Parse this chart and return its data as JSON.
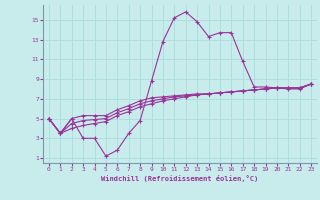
{
  "xlabel": "Windchill (Refroidissement éolien,°C)",
  "bg_color": "#c8ecec",
  "line_color": "#993399",
  "grid_color": "#aadddd",
  "xlim": [
    -0.5,
    23.5
  ],
  "ylim": [
    0.5,
    16.5
  ],
  "xticks": [
    0,
    1,
    2,
    3,
    4,
    5,
    6,
    7,
    8,
    9,
    10,
    11,
    12,
    13,
    14,
    15,
    16,
    17,
    18,
    19,
    20,
    21,
    22,
    23
  ],
  "yticks": [
    1,
    3,
    5,
    7,
    9,
    11,
    13,
    15
  ],
  "line1_x": [
    0,
    1,
    2,
    3,
    4,
    5,
    6,
    7,
    8,
    9,
    10,
    11,
    12,
    13,
    14,
    15,
    16,
    17,
    18,
    19,
    20,
    21,
    22,
    23
  ],
  "line1_y": [
    5,
    3.5,
    5.0,
    3.0,
    3.0,
    1.2,
    1.8,
    3.5,
    4.8,
    8.8,
    12.8,
    15.2,
    15.8,
    14.8,
    13.3,
    13.7,
    13.7,
    10.8,
    8.2,
    8.2,
    8.1,
    8.0,
    8.0,
    8.5
  ],
  "line2_x": [
    0,
    1,
    2,
    3,
    4,
    5,
    6,
    7,
    8,
    9,
    10,
    11,
    12,
    13,
    14,
    15,
    16,
    17,
    18,
    19,
    20,
    21,
    22,
    23
  ],
  "line2_y": [
    5,
    3.5,
    5.0,
    5.3,
    5.3,
    5.3,
    5.9,
    6.3,
    6.8,
    7.1,
    7.2,
    7.3,
    7.4,
    7.5,
    7.5,
    7.6,
    7.7,
    7.8,
    7.9,
    8.0,
    8.1,
    8.1,
    8.1,
    8.5
  ],
  "line3_x": [
    0,
    1,
    2,
    3,
    4,
    5,
    6,
    7,
    8,
    9,
    10,
    11,
    12,
    13,
    14,
    15,
    16,
    17,
    18,
    19,
    20,
    21,
    22,
    23
  ],
  "line3_y": [
    5,
    3.5,
    4.5,
    4.8,
    4.9,
    5.0,
    5.6,
    6.0,
    6.5,
    6.8,
    7.0,
    7.2,
    7.3,
    7.4,
    7.5,
    7.6,
    7.7,
    7.8,
    7.9,
    8.0,
    8.1,
    8.1,
    8.1,
    8.5
  ],
  "line4_x": [
    0,
    1,
    2,
    3,
    4,
    5,
    6,
    7,
    8,
    9,
    10,
    11,
    12,
    13,
    14,
    15,
    16,
    17,
    18,
    19,
    20,
    21,
    22,
    23
  ],
  "line4_y": [
    5,
    3.5,
    4.0,
    4.3,
    4.5,
    4.7,
    5.3,
    5.7,
    6.2,
    6.5,
    6.8,
    7.0,
    7.2,
    7.4,
    7.5,
    7.6,
    7.7,
    7.8,
    7.9,
    8.0,
    8.1,
    8.1,
    8.1,
    8.5
  ]
}
